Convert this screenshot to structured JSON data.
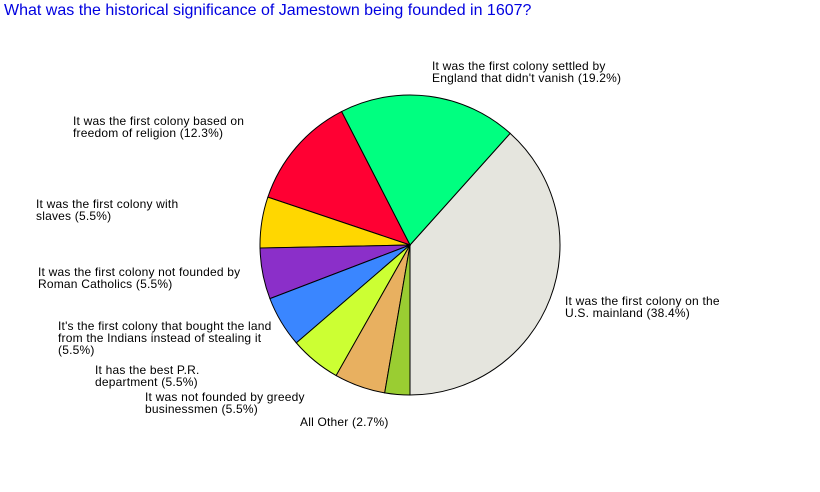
{
  "chart_data": {
    "type": "pie",
    "title": "What was the historical significance of Jamestown being founded in 1607?",
    "categories": [
      "It was the first colony on the U.S. mainland",
      "It was the first colony settled by England that didn't vanish",
      "It was the first colony based on freedom of religion",
      "It was the first colony with slaves",
      "It was the first colony not founded by Roman Catholics",
      "It's the first colony that bought the land from the Indians instead of stealing it",
      "It has the best P.R. department",
      "It was not founded by greedy businessmen",
      "All Other"
    ],
    "values": [
      38.4,
      19.2,
      12.3,
      5.5,
      5.5,
      5.5,
      5.5,
      5.5,
      2.7
    ],
    "value_labels": [
      "(38.4%)",
      "(19.2%)",
      "(12.3%)",
      "(5.5%)",
      "(5.5%)",
      "(5.5%)",
      "(5.5%)",
      "(5.5%)",
      "(2.7%)"
    ],
    "colors": [
      "#e5e5de",
      "#00ff80",
      "#ff0033",
      "#ffd700",
      "#8b2fc9",
      "#3a86ff",
      "#ccff33",
      "#e8b060",
      "#9acd32"
    ]
  }
}
